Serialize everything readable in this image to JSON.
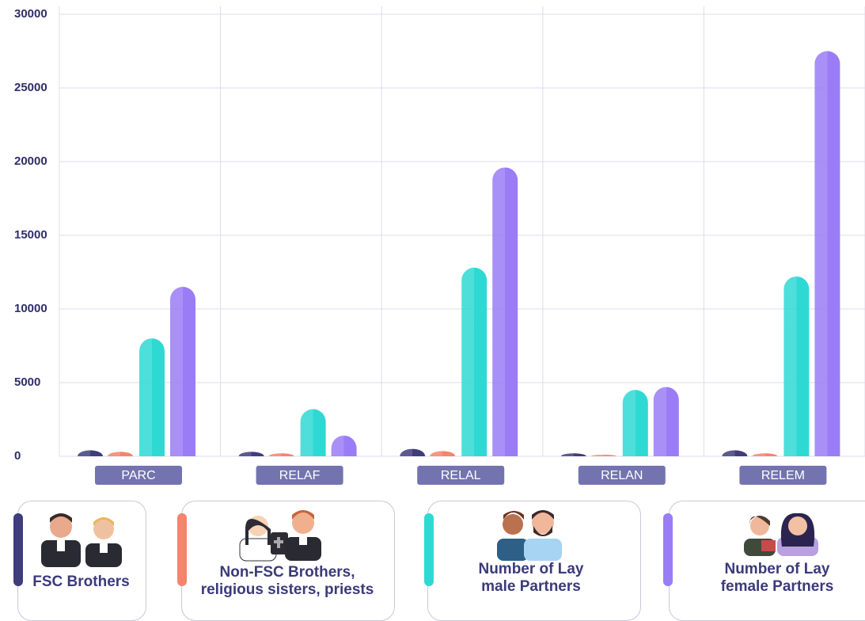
{
  "chart_data": {
    "type": "bar",
    "categories": [
      "PARC",
      "RELAF",
      "RELAL",
      "RELAN",
      "RELEM"
    ],
    "series": [
      {
        "name": "FSC Brothers",
        "color": "#3f3d7c",
        "values": [
          400,
          300,
          500,
          200,
          400
        ]
      },
      {
        "name": "Non-FSC Brothers, religious sisters, priests",
        "color": "#f4846b",
        "values": [
          300,
          200,
          350,
          100,
          200
        ]
      },
      {
        "name": "Number of Lay male Partners",
        "color": "#2fd9d3",
        "values": [
          8000,
          3200,
          12800,
          4500,
          12200
        ]
      },
      {
        "name": "Number of Lay female Partners",
        "color": "#9a7cf6",
        "values": [
          11500,
          1400,
          19600,
          4700,
          27500
        ]
      }
    ],
    "ylim": [
      0,
      30000
    ],
    "yticks": [
      0,
      5000,
      10000,
      15000,
      20000,
      25000,
      30000
    ],
    "grid": true
  }
}
